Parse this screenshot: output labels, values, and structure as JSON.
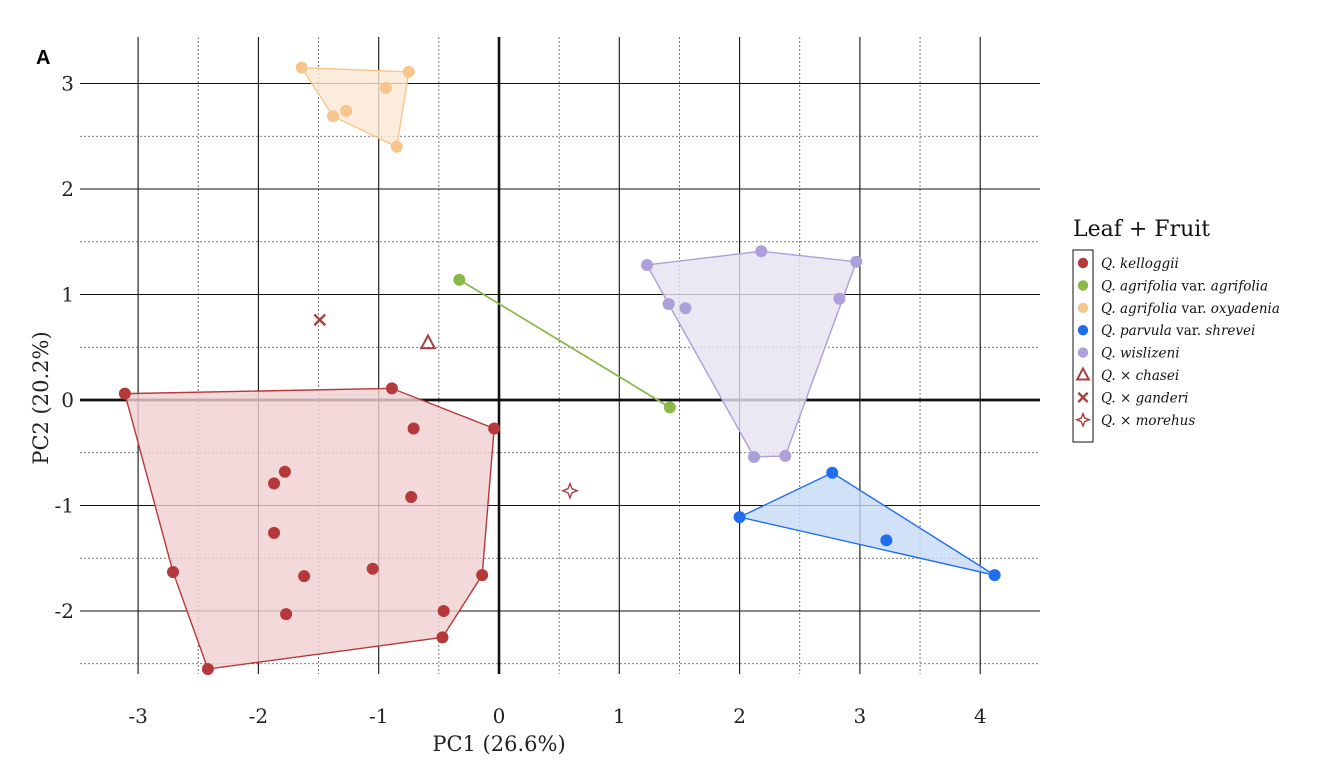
{
  "panel_label": "A",
  "chart_data": {
    "type": "scatter",
    "title": "",
    "xlabel": "PC1 (26.6%)",
    "ylabel": "PC2 (20.2%)",
    "xlim": [
      -3.3,
      4.45
    ],
    "ylim": [
      -2.65,
      3.4
    ],
    "x_ticks": [
      -3,
      -2,
      -1,
      0,
      1,
      2,
      3,
      4
    ],
    "y_ticks": [
      -2,
      -1,
      0,
      1,
      2,
      3
    ],
    "x_tick_labels": [
      "-3",
      "-2",
      "-1",
      "0",
      "1",
      "2",
      "3",
      "4"
    ],
    "y_tick_labels": [
      "-2",
      "-1",
      "0",
      "1",
      "2",
      "3"
    ],
    "grid": true,
    "legend_position": "right",
    "legend_title": "Leaf + Fruit",
    "series": [
      {
        "name": "Q. kelloggii",
        "name_parts": [
          {
            "t": "Q. kelloggii",
            "i": true
          }
        ],
        "color": "#b5393b",
        "fill": "#f0cfcf",
        "marker": "circle",
        "hull": true,
        "points": [
          [
            -3.11,
            0.06
          ],
          [
            -2.71,
            -1.63
          ],
          [
            -2.42,
            -2.55
          ],
          [
            -1.87,
            -0.79
          ],
          [
            -1.87,
            -1.26
          ],
          [
            -1.78,
            -0.68
          ],
          [
            -1.77,
            -2.03
          ],
          [
            -1.62,
            -1.67
          ],
          [
            -1.05,
            -1.6
          ],
          [
            -0.89,
            0.11
          ],
          [
            -0.71,
            -0.27
          ],
          [
            -0.73,
            -0.92
          ],
          [
            -0.46,
            -2.0
          ],
          [
            -0.47,
            -2.25
          ],
          [
            -0.14,
            -1.66
          ],
          [
            -0.04,
            -0.27
          ]
        ]
      },
      {
        "name": "Q. agrifolia var. agrifolia",
        "name_parts": [
          {
            "t": "Q. agrifolia",
            "i": true
          },
          {
            "t": " var. ",
            "i": false
          },
          {
            "t": "agrifolia",
            "i": true
          }
        ],
        "color": "#8bb84a",
        "fill": "none",
        "marker": "circle",
        "hull": true,
        "points": [
          [
            -0.33,
            1.14
          ],
          [
            1.42,
            -0.07
          ]
        ]
      },
      {
        "name": "Q. agrifolia var. oxyadenia",
        "name_parts": [
          {
            "t": "Q. agrifolia",
            "i": true
          },
          {
            "t": " var. ",
            "i": false
          },
          {
            "t": "oxyadenia",
            "i": true
          }
        ],
        "color": "#f6c58e",
        "fill": "#fbe7d3",
        "marker": "circle",
        "hull": true,
        "points": [
          [
            -1.64,
            3.15
          ],
          [
            -1.38,
            2.69
          ],
          [
            -1.27,
            2.74
          ],
          [
            -0.94,
            2.96
          ],
          [
            -0.75,
            3.11
          ],
          [
            -0.85,
            2.4
          ]
        ]
      },
      {
        "name": "Q. parvula var. shrevei",
        "name_parts": [
          {
            "t": "Q. parvula",
            "i": true
          },
          {
            "t": " var. ",
            "i": false
          },
          {
            "t": "shrevei",
            "i": true
          }
        ],
        "color": "#1f6ef0",
        "fill": "#c6daf6",
        "marker": "circle",
        "hull": true,
        "points": [
          [
            2.0,
            -1.11
          ],
          [
            2.77,
            -0.69
          ],
          [
            3.22,
            -1.33
          ],
          [
            4.12,
            -1.66
          ]
        ]
      },
      {
        "name": "Q. wislizeni",
        "name_parts": [
          {
            "t": "Q. wislizeni",
            "i": true
          }
        ],
        "color": "#ad9fd9",
        "fill": "#e6e2f0",
        "marker": "circle",
        "hull": true,
        "points": [
          [
            1.23,
            1.28
          ],
          [
            1.41,
            0.91
          ],
          [
            1.55,
            0.87
          ],
          [
            2.18,
            1.41
          ],
          [
            2.83,
            0.96
          ],
          [
            2.97,
            1.31
          ],
          [
            2.12,
            -0.54
          ],
          [
            2.38,
            -0.53
          ]
        ]
      },
      {
        "name": "Q. × chasei",
        "name_parts": [
          {
            "t": "Q.",
            "i": true
          },
          {
            "t": " × ",
            "i": false
          },
          {
            "t": "chasei",
            "i": true
          }
        ],
        "color": "#a4403e",
        "fill": "none",
        "marker": "triangle",
        "hull": false,
        "points": [
          [
            -0.59,
            0.54
          ]
        ]
      },
      {
        "name": "Q. × ganderi",
        "name_parts": [
          {
            "t": "Q.",
            "i": true
          },
          {
            "t": " × ",
            "i": false
          },
          {
            "t": "ganderi",
            "i": true
          }
        ],
        "color": "#a4403e",
        "fill": "none",
        "marker": "x",
        "hull": false,
        "points": [
          [
            -1.49,
            0.76
          ]
        ]
      },
      {
        "name": "Q. × morehus",
        "name_parts": [
          {
            "t": "Q.",
            "i": true
          },
          {
            "t": " × ",
            "i": false
          },
          {
            "t": "morehus",
            "i": true
          }
        ],
        "color": "#a4403e",
        "fill": "none",
        "marker": "star",
        "hull": false,
        "points": [
          [
            0.59,
            -0.86
          ]
        ]
      }
    ]
  }
}
